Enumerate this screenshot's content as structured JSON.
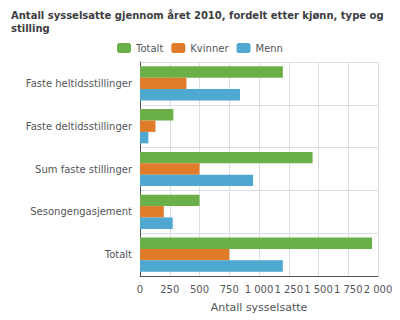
{
  "chart_data": {
    "type": "bar",
    "orientation": "horizontal",
    "title": "Antall sysselsatte gjennom året 2010, fordelt etter kjønn, type og\nstilling",
    "categories": [
      "Totalt",
      "Sesongengasjement",
      "Sum faste stillinger",
      "Faste deltidsstillinger",
      "Faste heltidsstillinger"
    ],
    "series": [
      {
        "name": "Totalt",
        "color": "#6AAF48",
        "values": [
          1950,
          500,
          1450,
          280,
          1200
        ]
      },
      {
        "name": "Kvinner",
        "color": "#E07B2A",
        "values": [
          750,
          200,
          500,
          130,
          390
        ]
      },
      {
        "name": "Menn",
        "color": "#4EA8D0",
        "values": [
          1200,
          275,
          950,
          70,
          840
        ]
      }
    ],
    "xlabel": "Antall sysselsatte",
    "xlim": [
      0,
      2000
    ],
    "xticks": [
      0,
      250,
      500,
      750,
      {
        "value": 1000,
        "label": "1 000"
      },
      {
        "value": 1250,
        "label": "1 250"
      },
      {
        "value": 1500,
        "label": "1 500"
      },
      {
        "value": 1750,
        "label": "1 750"
      },
      {
        "value": 2000,
        "label": "2 000"
      }
    ],
    "grid": true,
    "legend": "top"
  }
}
